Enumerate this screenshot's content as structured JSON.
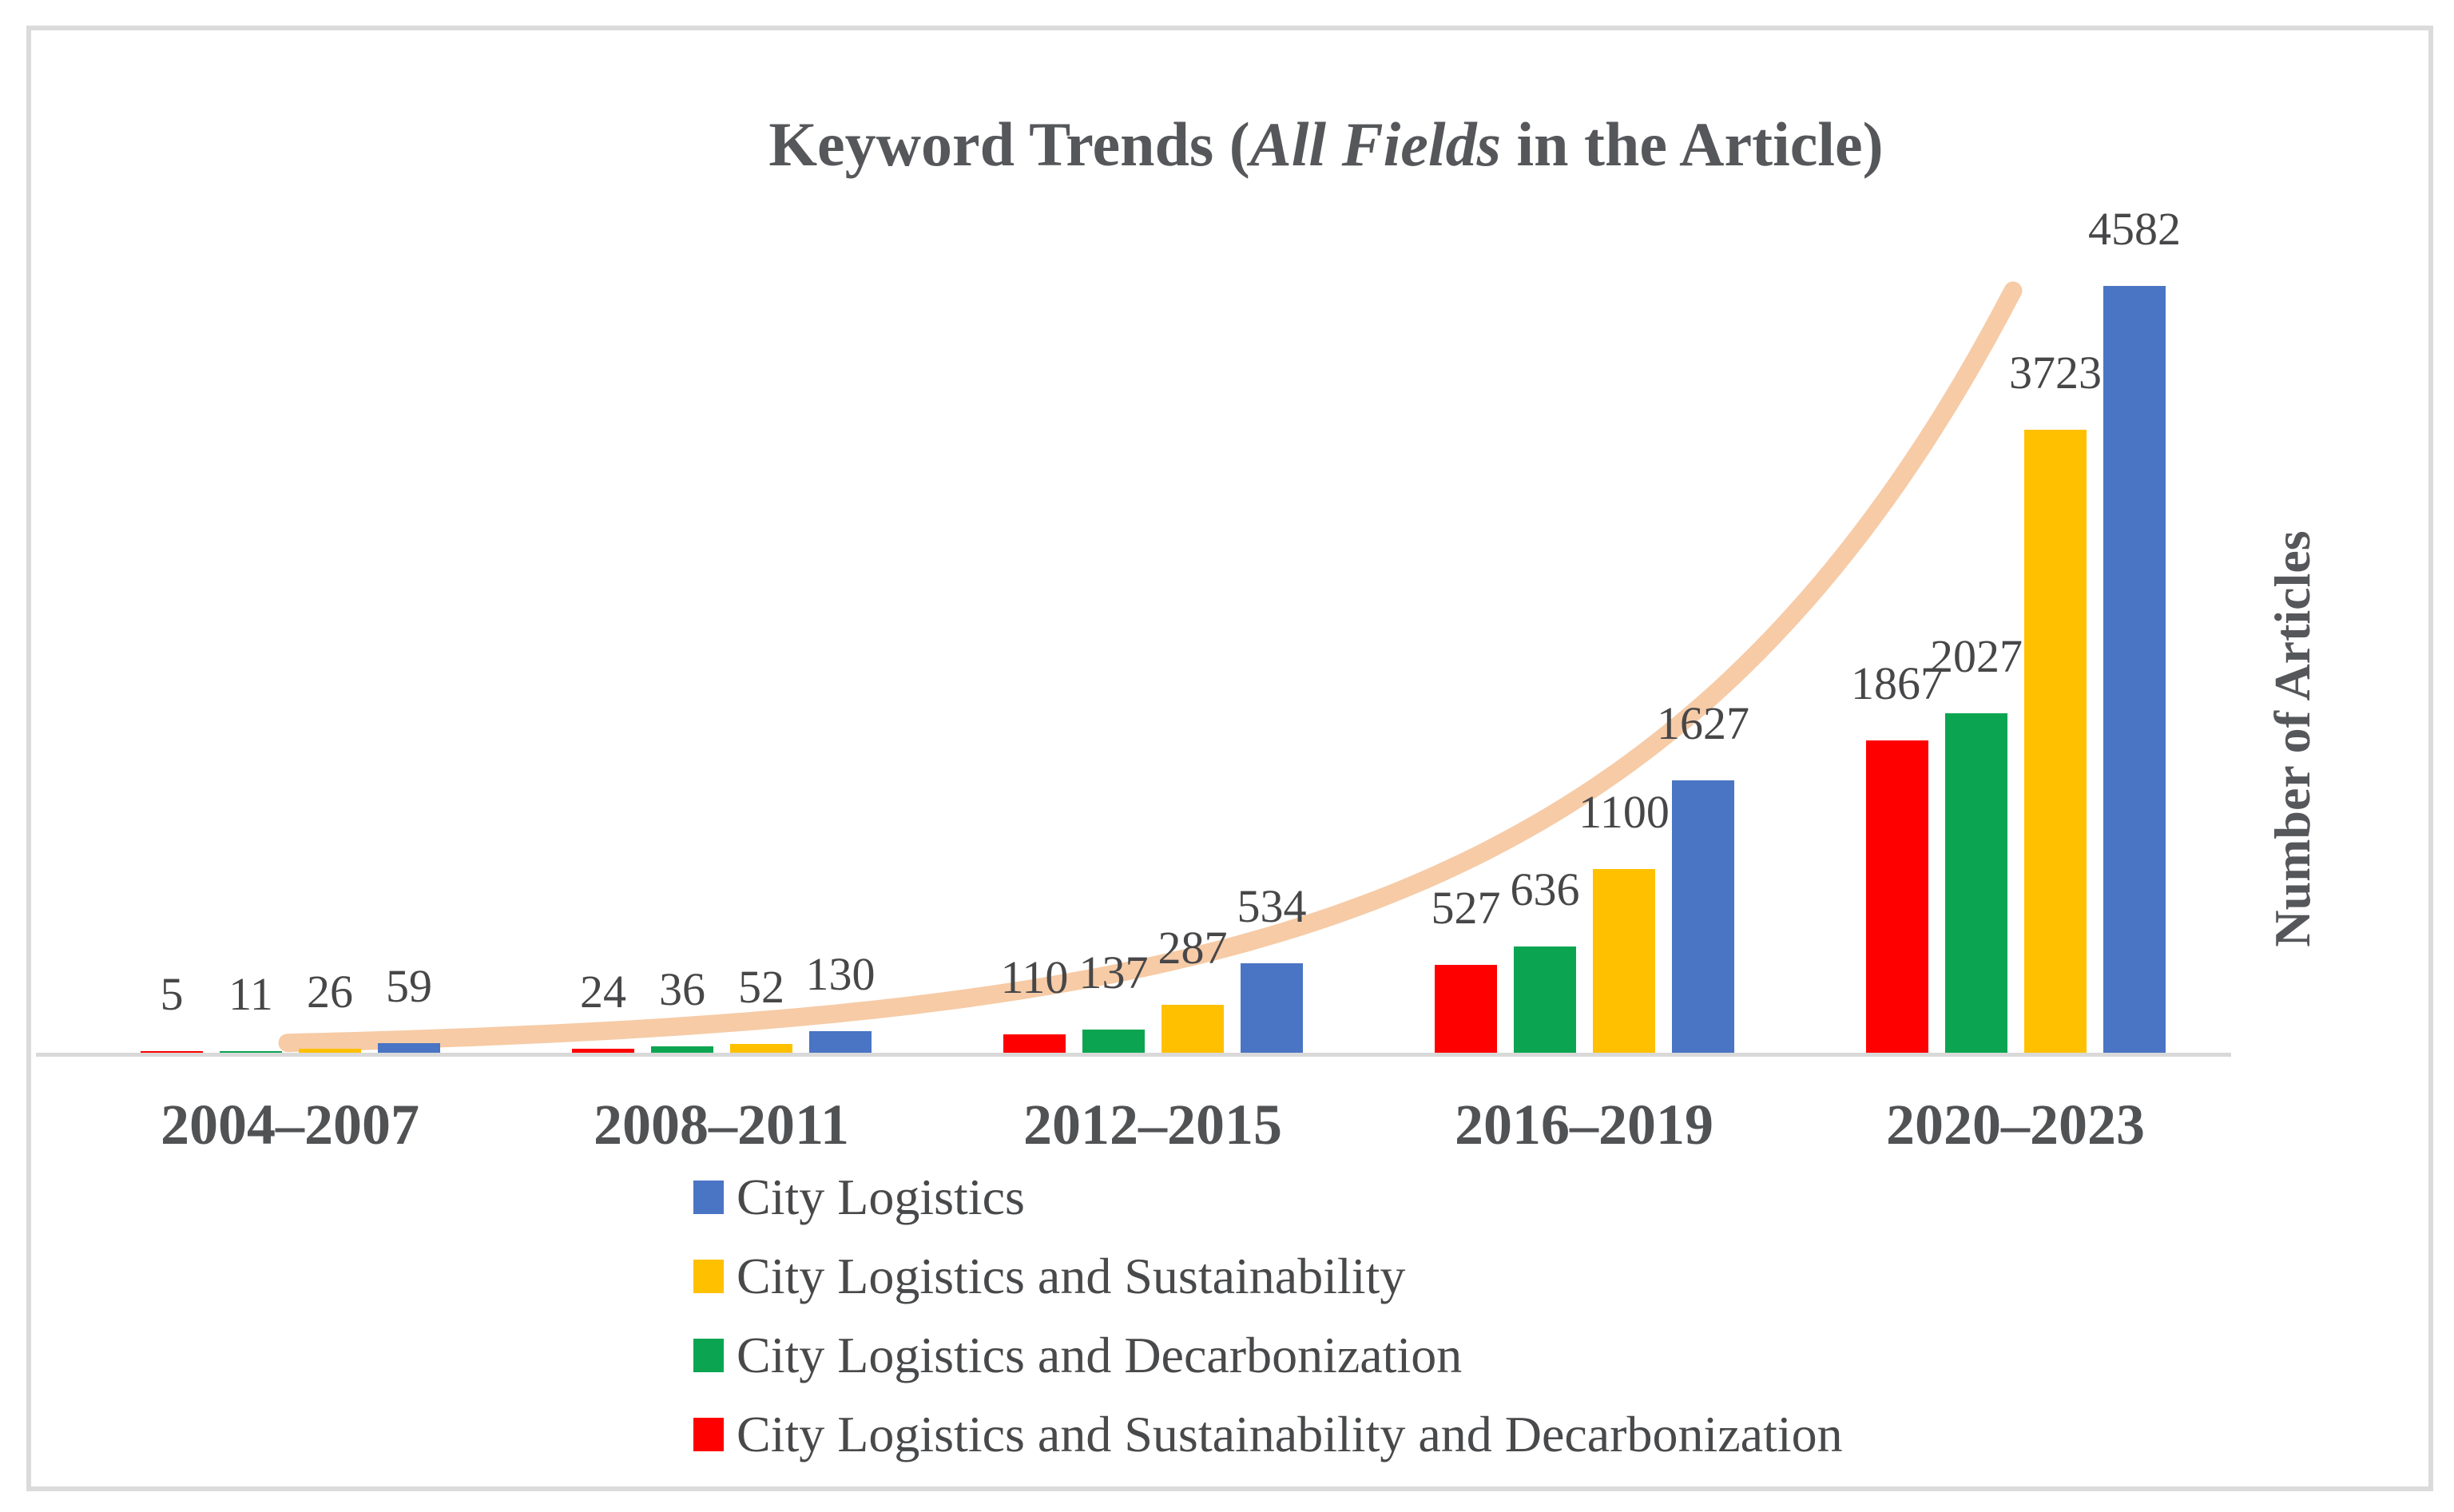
{
  "figure": {
    "title_prefix": "Keyword Trends (",
    "title_italic": "All Fields",
    "title_suffix": " in the Article)",
    "y_axis_label": "Number of Articles"
  },
  "chart_data": {
    "type": "bar",
    "title": "Keyword Trends (All Fields in the Article)",
    "categories": [
      "2004–2007",
      "2008–2011",
      "2012–2015",
      "2016–2019",
      "2020–2023"
    ],
    "series": [
      {
        "name": "City Logistics",
        "color": "#4a74c4",
        "values": [
          59,
          130,
          534,
          1627,
          4582
        ]
      },
      {
        "name": "City Logistics and Sustainability",
        "color": "#ffc000",
        "values": [
          26,
          52,
          287,
          1100,
          3723
        ]
      },
      {
        "name": "City Logistics and Decarbonization",
        "color": "#0ba552",
        "values": [
          11,
          36,
          137,
          636,
          2027
        ]
      },
      {
        "name": "City Logistics and Sustainability and Decarbonization",
        "color": "#ff0000",
        "values": [
          5,
          24,
          110,
          527,
          1867
        ]
      }
    ],
    "bar_order_within_group": "reverse of legend order (red, green, yellow, blue left to right)",
    "data_labels": true,
    "gridlines": false,
    "legend_position": "bottom-left",
    "xlabel": "",
    "ylabel": "Number of Articles",
    "ylim": [
      0,
      4800
    ],
    "trendline": {
      "style": "exponential",
      "follows_series": "City Logistics",
      "color": "#f6cba6"
    },
    "axis_line_color": "#d9d9d9",
    "frame_border_color": "#dbdbdb",
    "label_text_color": "#474749"
  }
}
